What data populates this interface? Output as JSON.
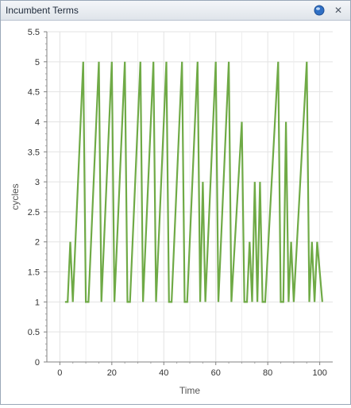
{
  "window": {
    "title": "Incumbent Terms",
    "help_icon": "help-globe-icon",
    "close_icon": "close-icon",
    "close_glyph": "✕"
  },
  "chart_data": {
    "type": "line",
    "xlabel": "Time",
    "ylabel": "cycles",
    "xlim": [
      -5,
      105
    ],
    "ylim": [
      0,
      5.5
    ],
    "x_ticks": [
      0,
      20,
      40,
      60,
      80,
      100
    ],
    "y_ticks": [
      0,
      0.5,
      1,
      1.5,
      2,
      2.5,
      3,
      3.5,
      4,
      4.5,
      5,
      5.5
    ],
    "grid": true,
    "line_color": "#6faa46",
    "series": [
      {
        "x": [
          2,
          3,
          4,
          5,
          9,
          10,
          11,
          15,
          16,
          20,
          21,
          25,
          26,
          27,
          31,
          32,
          36,
          37,
          41,
          42,
          43,
          47,
          48,
          49,
          53,
          54,
          55,
          56,
          60,
          61,
          65,
          66,
          70,
          71,
          72,
          73,
          74,
          75,
          76,
          77,
          78,
          79,
          84,
          85,
          86,
          87,
          88,
          89,
          90,
          95,
          96,
          97,
          98,
          99,
          101
        ],
        "y": [
          1,
          1,
          2,
          1,
          5,
          1,
          1,
          5,
          1,
          5,
          1,
          5,
          1,
          1,
          5,
          1,
          5,
          1,
          5,
          1,
          1,
          5,
          1,
          1,
          5,
          1,
          3,
          1,
          5,
          1,
          5,
          1,
          4,
          1,
          1,
          2,
          1,
          3,
          1,
          3,
          1,
          1,
          5,
          1,
          1,
          4,
          1,
          2,
          1,
          5,
          1,
          2,
          1,
          2,
          1
        ]
      }
    ]
  }
}
